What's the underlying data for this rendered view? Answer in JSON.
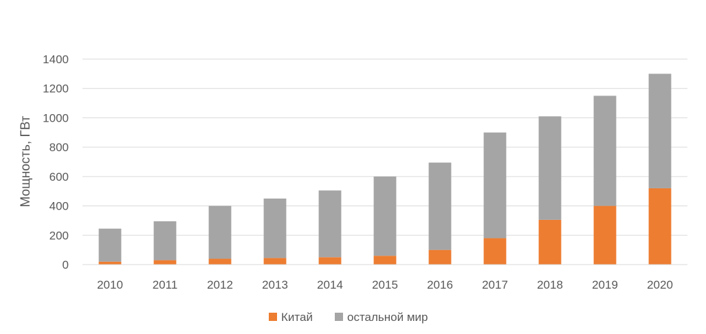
{
  "chart_data": {
    "type": "bar",
    "stacked": true,
    "title": "",
    "xlabel": "",
    "ylabel": "Мощность, ГВт",
    "ylim": [
      0,
      1400
    ],
    "yticks": [
      0,
      200,
      400,
      600,
      800,
      1000,
      1200,
      1400
    ],
    "grid": true,
    "legend_position": "bottom",
    "categories": [
      "2010",
      "2011",
      "2012",
      "2013",
      "2014",
      "2015",
      "2016",
      "2017",
      "2018",
      "2019",
      "2020"
    ],
    "series": [
      {
        "name": "Китай",
        "color": "#ED7D31",
        "values": [
          20,
          30,
          40,
          45,
          50,
          60,
          100,
          180,
          305,
          400,
          520
        ]
      },
      {
        "name": "остальной мир",
        "color": "#A5A5A5",
        "values": [
          225,
          265,
          360,
          405,
          455,
          540,
          595,
          720,
          705,
          750,
          780
        ]
      }
    ]
  }
}
